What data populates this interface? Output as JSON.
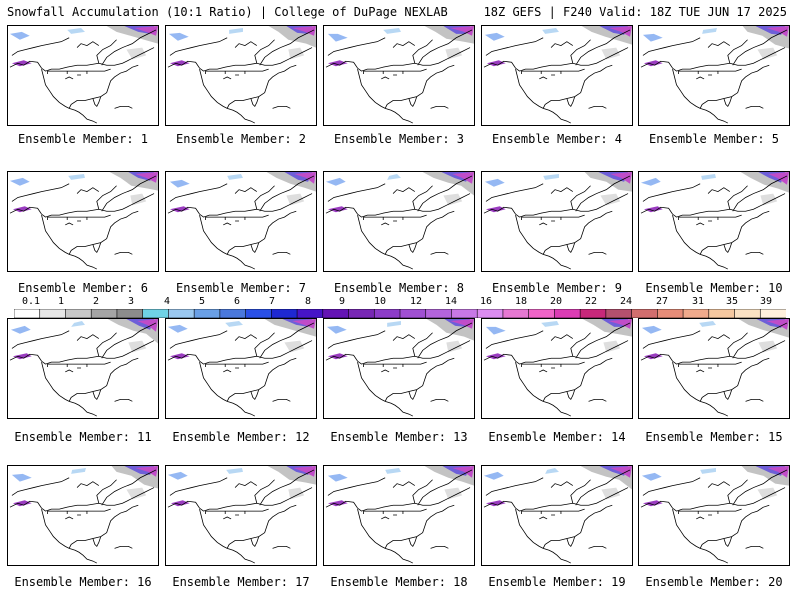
{
  "header": {
    "left_title": "Snowfall Accumulation (10:1 Ratio) | College of DuPage NEXLAB",
    "right_title": "18Z GEFS | F240 Valid: 18Z TUE JUN 17 2025"
  },
  "members": [
    {
      "label": "Ensemble Member: 1"
    },
    {
      "label": "Ensemble Member: 2"
    },
    {
      "label": "Ensemble Member: 3"
    },
    {
      "label": "Ensemble Member: 4"
    },
    {
      "label": "Ensemble Member: 5"
    },
    {
      "label": "Ensemble Member: 6"
    },
    {
      "label": "Ensemble Member: 7"
    },
    {
      "label": "Ensemble Member: 8"
    },
    {
      "label": "Ensemble Member: 9"
    },
    {
      "label": "Ensemble Member: 10"
    },
    {
      "label": "Ensemble Member: 11"
    },
    {
      "label": "Ensemble Member: 12"
    },
    {
      "label": "Ensemble Member: 13"
    },
    {
      "label": "Ensemble Member: 14"
    },
    {
      "label": "Ensemble Member: 15"
    },
    {
      "label": "Ensemble Member: 16"
    },
    {
      "label": "Ensemble Member: 17"
    },
    {
      "label": "Ensemble Member: 18"
    },
    {
      "label": "Ensemble Member: 19"
    },
    {
      "label": "Ensemble Member: 20"
    }
  ],
  "colorbar": {
    "labels": [
      "0.1",
      "1",
      "2",
      "3",
      "4",
      "5",
      "6",
      "7",
      "8",
      "9",
      "10",
      "12",
      "14",
      "16",
      "18",
      "20",
      "22",
      "24",
      "27",
      "31",
      "35",
      "39"
    ],
    "colors": [
      "#ffffff",
      "#e6e6e6",
      "#c8c8c8",
      "#a5a5a5",
      "#8c8c8c",
      "#6fd2e6",
      "#9ac8f0",
      "#6aa0e6",
      "#4a78dc",
      "#2a50e6",
      "#1e28d2",
      "#4614c8",
      "#6414b4",
      "#7828b4",
      "#8c3cc8",
      "#a050d2",
      "#b464dc",
      "#c878e6",
      "#dc8cf0",
      "#e678d2",
      "#f064c8",
      "#dc3cb4",
      "#c8287a",
      "#b4506e",
      "#d26e6e",
      "#e68c78",
      "#f0aa8c",
      "#f5c8a0",
      "#fae1c3",
      "#fff0dc"
    ]
  }
}
